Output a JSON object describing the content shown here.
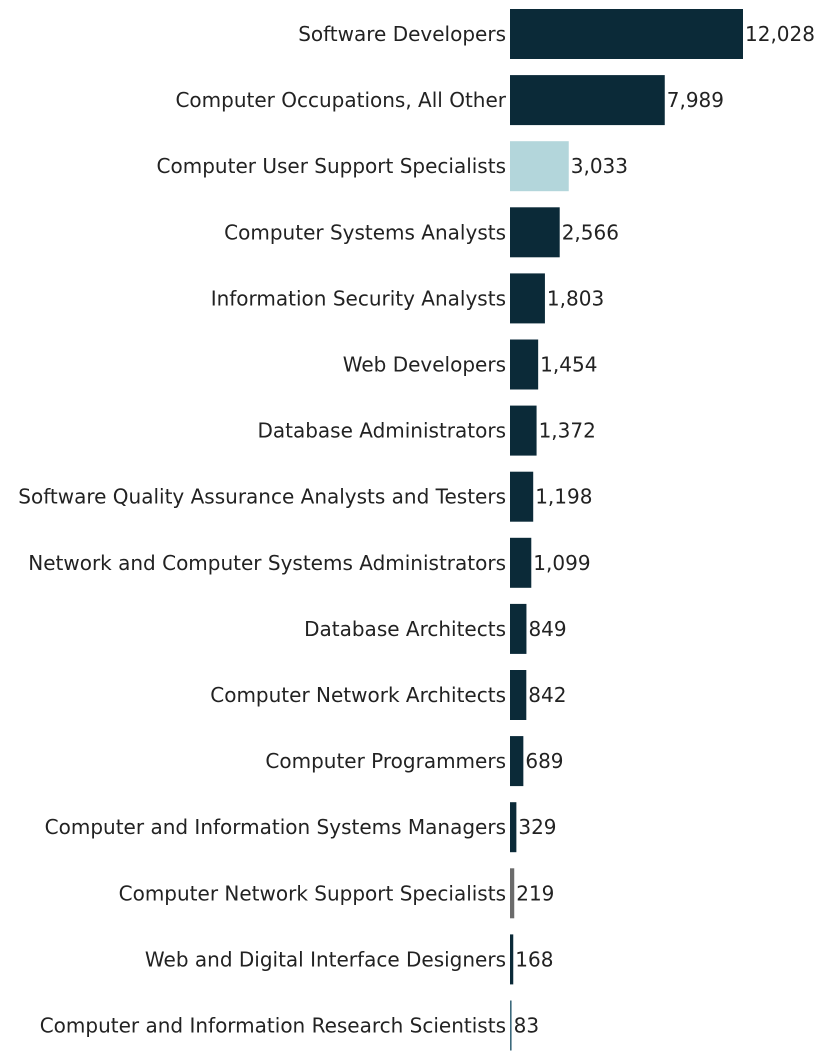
{
  "chart_data": {
    "type": "bar",
    "orientation": "horizontal",
    "title": "",
    "xlabel": "",
    "ylabel": "",
    "grid": false,
    "legend": "none",
    "categories": [
      "Software Developers",
      "Computer Occupations, All Other",
      "Computer User Support Specialists",
      "Computer Systems Analysts",
      "Information Security Analysts",
      "Web Developers",
      "Database Administrators",
      "Software Quality Assurance Analysts and Testers",
      "Network and Computer Systems Administrators",
      "Database Architects",
      "Computer Network Architects",
      "Computer Programmers",
      "Computer and Information Systems Managers",
      "Computer Network Support Specialists",
      "Web and Digital Interface Designers",
      "Computer and Information Research Scientists"
    ],
    "values": [
      12028,
      7989,
      3033,
      2566,
      1803,
      1454,
      1372,
      1198,
      1099,
      849,
      842,
      689,
      329,
      219,
      168,
      83
    ],
    "value_labels": [
      "12,028",
      "7,989",
      "3,033",
      "2,566",
      "1,803",
      "1,454",
      "1,372",
      "1,198",
      "1,099",
      "849",
      "842",
      "689",
      "329",
      "219",
      "168",
      "83"
    ],
    "bar_colors": [
      "#0b2a38",
      "#0b2a38",
      "#b3d6db",
      "#0b2a38",
      "#0b2a38",
      "#0b2a38",
      "#0b2a38",
      "#0b2a38",
      "#0b2a38",
      "#0b2a38",
      "#0b2a38",
      "#0b2a38",
      "#0b2a38",
      "#6b6b6b",
      "#0b2a38",
      "#3d6a7c"
    ],
    "xlim": [
      0,
      12028
    ]
  }
}
